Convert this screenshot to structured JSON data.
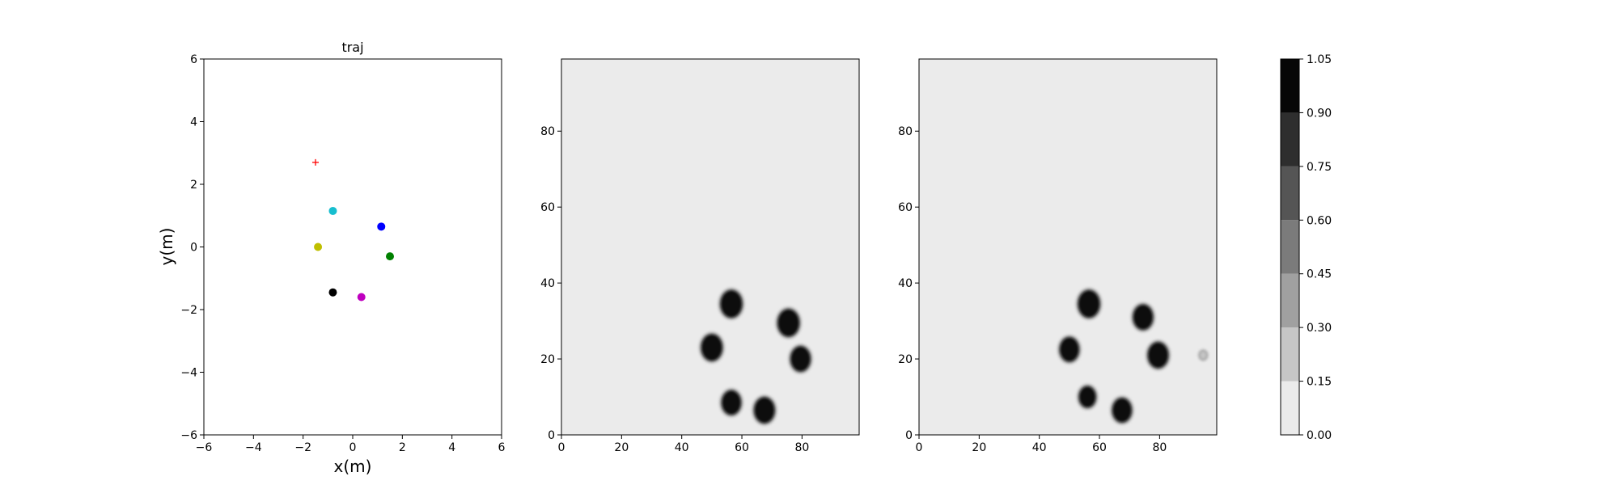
{
  "chart_data": [
    {
      "type": "scatter",
      "title": "traj",
      "xlabel": "x(m)",
      "ylabel": "y(m)",
      "xlim": [
        -6,
        6
      ],
      "ylim": [
        -6,
        6
      ],
      "xticks": [
        -6,
        -4,
        -2,
        0,
        2,
        4,
        6
      ],
      "yticks": [
        -6,
        -4,
        -2,
        0,
        2,
        4,
        6
      ],
      "xtick_labels": [
        "−6",
        "−4",
        "−2",
        "0",
        "2",
        "4",
        "6"
      ],
      "ytick_labels": [
        "−6",
        "−4",
        "−2",
        "0",
        "2",
        "4",
        "6"
      ],
      "points": [
        {
          "x": -0.8,
          "y": 1.15,
          "color": "#17becf"
        },
        {
          "x": 1.15,
          "y": 0.65,
          "color": "#0000ff"
        },
        {
          "x": -1.4,
          "y": 0.0,
          "color": "#bfbf00"
        },
        {
          "x": 1.5,
          "y": -0.3,
          "color": "#008000"
        },
        {
          "x": -0.8,
          "y": -1.45,
          "color": "#000000"
        },
        {
          "x": 0.35,
          "y": -1.6,
          "color": "#bf00bf"
        }
      ],
      "goal_marker": {
        "x": -1.5,
        "y": 2.7,
        "color": "#ff0000",
        "symbol": "+"
      },
      "grid": false
    },
    {
      "type": "heatmap",
      "title": "",
      "xlim": [
        0,
        99
      ],
      "ylim": [
        0,
        99
      ],
      "xticks": [
        0,
        20,
        40,
        60,
        80
      ],
      "yticks": [
        0,
        20,
        40,
        60,
        80
      ],
      "background_value": 0.05,
      "blobs": [
        {
          "x": 56.5,
          "y": 34.5,
          "r": 3.6,
          "value": 1.0
        },
        {
          "x": 75.5,
          "y": 29.5,
          "r": 3.6,
          "value": 1.0
        },
        {
          "x": 50.0,
          "y": 23.0,
          "r": 3.5,
          "value": 1.0
        },
        {
          "x": 79.5,
          "y": 20.0,
          "r": 3.3,
          "value": 1.0
        },
        {
          "x": 56.5,
          "y": 8.5,
          "r": 3.2,
          "value": 1.0
        },
        {
          "x": 67.5,
          "y": 6.5,
          "r": 3.4,
          "value": 1.0
        }
      ]
    },
    {
      "type": "heatmap",
      "title": "",
      "xlim": [
        0,
        99
      ],
      "ylim": [
        0,
        99
      ],
      "xticks": [
        0,
        20,
        40,
        60,
        80
      ],
      "yticks": [
        0,
        20,
        40,
        60,
        80
      ],
      "background_value": 0.05,
      "blobs": [
        {
          "x": 56.5,
          "y": 34.5,
          "r": 3.6,
          "value": 1.0
        },
        {
          "x": 74.5,
          "y": 31.0,
          "r": 3.3,
          "value": 1.0
        },
        {
          "x": 50.0,
          "y": 22.5,
          "r": 3.2,
          "value": 1.0
        },
        {
          "x": 79.5,
          "y": 21.0,
          "r": 3.4,
          "value": 1.0
        },
        {
          "x": 56.0,
          "y": 10.0,
          "r": 2.8,
          "value": 0.95
        },
        {
          "x": 67.5,
          "y": 6.5,
          "r": 3.2,
          "value": 1.0
        },
        {
          "x": 94.5,
          "y": 21.0,
          "r": 0.9,
          "value": 0.25
        }
      ]
    }
  ],
  "colorbar": {
    "levels": [
      0.0,
      0.15,
      0.3,
      0.45,
      0.6,
      0.75,
      0.9,
      1.05
    ],
    "labels": [
      "0.00",
      "0.15",
      "0.30",
      "0.45",
      "0.60",
      "0.75",
      "0.90",
      "1.05"
    ],
    "colors": [
      "#ebebeb",
      "#c6c6c6",
      "#a0a0a0",
      "#7b7b7b",
      "#555555",
      "#2e2e2e",
      "#070707"
    ]
  }
}
